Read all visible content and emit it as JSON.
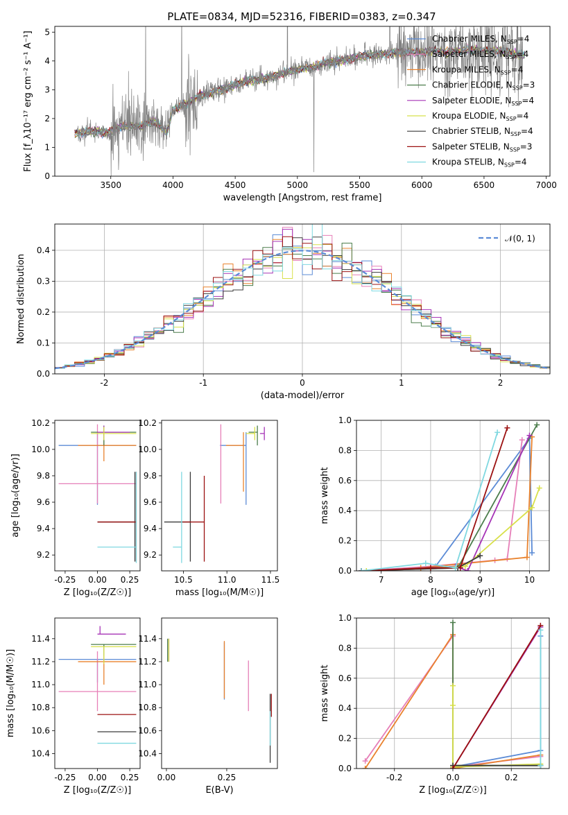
{
  "figure": {
    "title": "PLATE=0834, MJD=52316, FIBERID=0383, z=0.347"
  },
  "model_styles": [
    {
      "name": "Chabrier MILES",
      "nssp": "4",
      "color": "#5b8bd6"
    },
    {
      "name": "Salpeter MILES",
      "nssp": "4",
      "color": "#e67fb8"
    },
    {
      "name": "Kroupa MILES",
      "nssp": "4",
      "color": "#e9822d"
    },
    {
      "name": "Chabrier ELODIE",
      "nssp": "3",
      "color": "#4b7d4b"
    },
    {
      "name": "Salpeter ELODIE",
      "nssp": "4",
      "color": "#a633b6"
    },
    {
      "name": "Kroupa ELODIE",
      "nssp": "4",
      "color": "#d8e04a"
    },
    {
      "name": "Chabrier STELIB",
      "nssp": "4",
      "color": "#3a3a3a"
    },
    {
      "name": "Salpeter STELIB",
      "nssp": "3",
      "color": "#9b1010"
    },
    {
      "name": "Kroupa STELIB",
      "nssp": "4",
      "color": "#7fd8e0"
    }
  ],
  "chart_data": [
    {
      "id": "spectrum",
      "type": "line",
      "xlabel": "wavelength [Angstrom, rest frame]",
      "ylabel": "Flux [f_λ10⁻¹⁷ erg cm⁻² s⁻¹ A⁻¹]",
      "xlim": [
        3050,
        7030
      ],
      "ylim": [
        0,
        5.2
      ],
      "xticks": [
        3500,
        4000,
        4500,
        5000,
        5500,
        6000,
        6500,
        7000
      ],
      "yticks": [
        0,
        1,
        2,
        3,
        4,
        5
      ],
      "grid": false,
      "legend_position": "right",
      "continuum": {
        "x": [
          3210,
          3300,
          3400,
          3480,
          3550,
          3650,
          3750,
          3850,
          3900,
          3950,
          4000,
          4100,
          4200,
          4300,
          4400,
          4500,
          4600,
          4700,
          4800,
          4900,
          5000,
          5100,
          5200,
          5300,
          5400,
          5500,
          5600,
          5700,
          5800,
          5900,
          6000,
          6100,
          6200,
          6300,
          6400,
          6500,
          6600,
          6700,
          6800
        ],
        "y": [
          1.45,
          1.55,
          1.55,
          1.5,
          1.7,
          1.75,
          1.75,
          1.9,
          1.7,
          1.5,
          2.3,
          2.5,
          2.75,
          2.9,
          3.0,
          3.2,
          3.3,
          3.35,
          3.45,
          3.6,
          3.7,
          3.75,
          3.9,
          4.0,
          4.05,
          4.15,
          4.2,
          4.25,
          4.3,
          4.3,
          4.3,
          4.35,
          4.3,
          4.35,
          4.4,
          4.35,
          4.35,
          4.3,
          4.2
        ]
      },
      "observed_x_range": [
        3230,
        6810
      ],
      "observed_noise_note": "",
      "model_x_range": [
        3210,
        6830
      ]
    },
    {
      "id": "residuals",
      "type": "histogram",
      "xlabel": "(data-model)/error",
      "ylabel": "Normed distribution",
      "xlim": [
        -2.5,
        2.5
      ],
      "ylim": [
        0,
        0.485
      ],
      "xticks": [
        -2,
        -1,
        0,
        1,
        2
      ],
      "yticks": [
        0,
        0.1,
        0.2,
        0.3,
        0.4
      ],
      "grid": true,
      "bin_width": 0.1,
      "reference_curve": {
        "label": "𝒩(0, 1)",
        "color": "#5b8bd6",
        "style": "dashed"
      },
      "legend_position": "top-right"
    },
    {
      "id": "age_vs_Z",
      "type": "errorbar",
      "xlabel": "Z [log₁₀(Z/Z☉)]",
      "ylabel": "age  [log₁₀(age/yr)]",
      "xlim": [
        -0.33,
        0.33
      ],
      "ylim": [
        9.08,
        10.22
      ],
      "xticks": [
        -0.25,
        0.0,
        0.25
      ],
      "yticks": [
        9.2,
        9.4,
        9.6,
        9.8,
        10.0,
        10.2
      ],
      "points": [
        {
          "model": 0,
          "x": 0.0,
          "y": 10.03,
          "xerr": [
            0.3,
            0.3
          ],
          "yerr": [
            0.45,
            0.1
          ]
        },
        {
          "model": 1,
          "x": 0.0,
          "y": 9.74,
          "xerr": [
            0.3,
            0.3
          ],
          "yerr": [
            0.15,
            0.45
          ]
        },
        {
          "model": 2,
          "x": 0.05,
          "y": 10.03,
          "xerr": [
            0.2,
            0.25
          ],
          "yerr": [
            0.12,
            0.1
          ]
        },
        {
          "model": 3,
          "x": 0.05,
          "y": 10.13,
          "xerr": [
            0.1,
            0.25
          ],
          "yerr": [
            0.1,
            0.05
          ]
        },
        {
          "model": 4,
          "x": 0.05,
          "y": 10.13,
          "xerr": [
            0.05,
            0.2
          ],
          "yerr": [
            0.05,
            0.05
          ]
        },
        {
          "model": 5,
          "x": 0.05,
          "y": 10.12,
          "xerr": [
            0.1,
            0.25
          ],
          "yerr": [
            0.05,
            0.05
          ]
        },
        {
          "model": 6,
          "x": 0.29,
          "y": 9.45,
          "xerr": [
            0.29,
            0.01
          ],
          "yerr": [
            0.3,
            0.38
          ]
        },
        {
          "model": 7,
          "x": 0.3,
          "y": 9.45,
          "xerr": [
            0.3,
            0.0
          ],
          "yerr": [
            0.3,
            0.38
          ]
        },
        {
          "model": 8,
          "x": 0.3,
          "y": 9.26,
          "xerr": [
            0.3,
            0.0
          ],
          "yerr": [
            0.12,
            0.57
          ]
        }
      ]
    },
    {
      "id": "age_vs_mass",
      "type": "errorbar",
      "xlabel": "mass [log₁₀(M/M☉)]",
      "ylabel": "",
      "xlim": [
        10.25,
        11.58
      ],
      "ylim": [
        9.08,
        10.22
      ],
      "xticks": [
        10.5,
        11.0,
        11.5
      ],
      "yticks": [
        9.2,
        9.4,
        9.6,
        9.8,
        10.0,
        10.2
      ],
      "points": [
        {
          "model": 0,
          "x": 11.22,
          "y": 10.03,
          "xerr": [
            0.3,
            0.0
          ],
          "yerr": [
            0.45,
            0.1
          ]
        },
        {
          "model": 1,
          "x": 10.93,
          "y": 9.74,
          "xerr": [
            0.0,
            0.0
          ],
          "yerr": [
            0.15,
            0.45
          ]
        },
        {
          "model": 2,
          "x": 11.19,
          "y": 10.03,
          "xerr": [
            0.2,
            0.0
          ],
          "yerr": [
            0.35,
            0.1
          ]
        },
        {
          "model": 3,
          "x": 11.35,
          "y": 10.13,
          "xerr": [
            0.1,
            0.0
          ],
          "yerr": [
            0.1,
            0.05
          ]
        },
        {
          "model": 4,
          "x": 11.43,
          "y": 10.12,
          "xerr": [
            0.05,
            0.0
          ],
          "yerr": [
            0.05,
            0.05
          ]
        },
        {
          "model": 5,
          "x": 11.32,
          "y": 10.12,
          "xerr": [
            0.1,
            0.0
          ],
          "yerr": [
            0.05,
            0.05
          ]
        },
        {
          "model": 6,
          "x": 10.58,
          "y": 9.45,
          "xerr": [
            0.3,
            0.0
          ],
          "yerr": [
            0.3,
            0.38
          ]
        },
        {
          "model": 7,
          "x": 10.74,
          "y": 9.45,
          "xerr": [
            0.25,
            0.0
          ],
          "yerr": [
            0.3,
            0.35
          ]
        },
        {
          "model": 8,
          "x": 10.48,
          "y": 9.26,
          "xerr": [
            0.1,
            0.0
          ],
          "yerr": [
            0.12,
            0.57
          ]
        }
      ]
    },
    {
      "id": "weight_vs_age",
      "type": "line",
      "xlabel": "age  [log₁₀(age/yr)]",
      "ylabel": "mass weight",
      "xlim": [
        6.5,
        10.4
      ],
      "ylim": [
        0,
        1.0
      ],
      "xticks": [
        7,
        8,
        9,
        10
      ],
      "yticks": [
        0.0,
        0.2,
        0.4,
        0.6,
        0.8,
        1.0
      ],
      "grid": true,
      "series": [
        {
          "model": 0,
          "x": [
            6.6,
            8.1,
            10.0,
            10.05
          ],
          "y": [
            0.0,
            0.03,
            0.88,
            0.12
          ]
        },
        {
          "model": 1,
          "x": [
            6.6,
            8.0,
            9.3,
            9.55,
            9.85
          ],
          "y": [
            0.0,
            0.03,
            0.07,
            0.08,
            0.87
          ]
        },
        {
          "model": 2,
          "x": [
            6.7,
            7.8,
            9.95,
            10.05
          ],
          "y": [
            0.0,
            0.02,
            0.09,
            0.89
          ]
        },
        {
          "model": 3,
          "x": [
            6.6,
            8.55,
            10.15
          ],
          "y": [
            0.0,
            0.02,
            0.97
          ]
        },
        {
          "model": 4,
          "x": [
            6.6,
            8.5,
            8.75,
            10.0
          ],
          "y": [
            0.0,
            0.03,
            0.0,
            0.9
          ]
        },
        {
          "model": 5,
          "x": [
            6.7,
            8.7,
            10.05,
            10.2
          ],
          "y": [
            0.0,
            0.03,
            0.42,
            0.55
          ]
        },
        {
          "model": 6,
          "x": [
            6.6,
            8.55,
            9.0
          ],
          "y": [
            0.0,
            0.02,
            0.1
          ]
        },
        {
          "model": 7,
          "x": [
            6.6,
            8.0,
            8.6,
            9.55
          ],
          "y": [
            0.0,
            0.02,
            0.02,
            0.95
          ]
        },
        {
          "model": 8,
          "x": [
            6.6,
            7.9,
            8.5,
            9.35
          ],
          "y": [
            0.0,
            0.05,
            0.02,
            0.92
          ]
        }
      ]
    },
    {
      "id": "mass_vs_Z",
      "type": "errorbar",
      "xlabel": "Z [log₁₀(Z/Z☉)]",
      "ylabel": "mass [log₁₀(M/M☉)]",
      "xlim": [
        -0.33,
        0.33
      ],
      "ylim": [
        10.27,
        11.58
      ],
      "xticks": [
        -0.25,
        0.0,
        0.25
      ],
      "yticks": [
        10.4,
        10.6,
        10.8,
        11.0,
        11.2,
        11.4
      ],
      "points": [
        {
          "model": 0,
          "x": 0.0,
          "y": 11.22,
          "xerr": [
            0.3,
            0.3
          ],
          "yerr": [
            0.2,
            0.0
          ]
        },
        {
          "model": 1,
          "x": 0.0,
          "y": 10.94,
          "xerr": [
            0.3,
            0.3
          ],
          "yerr": [
            0.17,
            0.35
          ]
        },
        {
          "model": 2,
          "x": 0.05,
          "y": 11.2,
          "xerr": [
            0.2,
            0.25
          ],
          "yerr": [
            0.2,
            0.05
          ]
        },
        {
          "model": 3,
          "x": 0.05,
          "y": 11.35,
          "xerr": [
            0.1,
            0.25
          ],
          "yerr": [
            0.1,
            0.0
          ]
        },
        {
          "model": 4,
          "x": 0.02,
          "y": 11.44,
          "xerr": [
            0.02,
            0.2
          ],
          "yerr": [
            0.0,
            0.07
          ]
        },
        {
          "model": 5,
          "x": 0.05,
          "y": 11.33,
          "xerr": [
            0.1,
            0.25
          ],
          "yerr": [
            0.15,
            0.0
          ]
        },
        {
          "model": 6,
          "x": 0.0,
          "y": 10.59,
          "xerr": [
            0.0,
            0.3
          ],
          "yerr": [
            0.0,
            0.0
          ]
        },
        {
          "model": 7,
          "x": 0.0,
          "y": 10.74,
          "xerr": [
            0.0,
            0.3
          ],
          "yerr": [
            0.0,
            0.0
          ]
        },
        {
          "model": 8,
          "x": 0.0,
          "y": 10.49,
          "xerr": [
            0.0,
            0.3
          ],
          "yerr": [
            0.0,
            0.0
          ]
        }
      ]
    },
    {
      "id": "mass_vs_EBV",
      "type": "errorbar",
      "xlabel": "E(B-V)",
      "ylabel": "",
      "xlim": [
        -0.02,
        0.46
      ],
      "ylim": [
        10.27,
        11.58
      ],
      "xticks": [
        0.0,
        0.25
      ],
      "xticklabels": [
        "0.00",
        "0.25"
      ],
      "yticks": [
        10.4,
        10.6,
        10.8,
        11.0,
        11.2,
        11.4
      ],
      "points": [
        {
          "model": 0,
          "x": 0.24,
          "y": 11.12,
          "xerr": [
            0,
            0
          ],
          "yerr": [
            0.25,
            0.25
          ]
        },
        {
          "model": 1,
          "x": 0.34,
          "y": 10.99,
          "xerr": [
            0,
            0
          ],
          "yerr": [
            0.22,
            0.22
          ]
        },
        {
          "model": 2,
          "x": 0.24,
          "y": 11.13,
          "xerr": [
            0,
            0
          ],
          "yerr": [
            0.25,
            0.25
          ]
        },
        {
          "model": 3,
          "x": 0.005,
          "y": 11.3,
          "xerr": [
            0,
            0
          ],
          "yerr": [
            0.1,
            0.1
          ]
        },
        {
          "model": 4,
          "x": 0.01,
          "y": 11.3,
          "xerr": [
            0,
            0
          ],
          "yerr": [
            0.1,
            0.1
          ]
        },
        {
          "model": 5,
          "x": 0.01,
          "y": 11.3,
          "xerr": [
            0,
            0
          ],
          "yerr": [
            0.1,
            0.1
          ]
        },
        {
          "model": 6,
          "x": 0.43,
          "y": 10.62,
          "xerr": [
            0,
            0
          ],
          "yerr": [
            0.3,
            0.3
          ]
        },
        {
          "model": 7,
          "x": 0.435,
          "y": 10.82,
          "xerr": [
            0,
            0
          ],
          "yerr": [
            0.1,
            0.1
          ]
        },
        {
          "model": 8,
          "x": 0.43,
          "y": 10.62,
          "xerr": [
            0,
            0
          ],
          "yerr": [
            0.15,
            0.15
          ]
        }
      ]
    },
    {
      "id": "weight_vs_Z",
      "type": "line",
      "xlabel": "Z [log₁₀(Z/Z☉)]",
      "ylabel": "mass weight",
      "xlim": [
        -0.33,
        0.33
      ],
      "ylim": [
        0,
        1.0
      ],
      "xticks": [
        -0.2,
        0.0,
        0.2
      ],
      "yticks": [
        0.0,
        0.2,
        0.4,
        0.6,
        0.8,
        1.0
      ],
      "grid": true,
      "series": [
        {
          "model": 0,
          "x": [
            0.0,
            0.3,
            0.3
          ],
          "y": [
            0.01,
            0.12,
            0.88
          ]
        },
        {
          "model": 1,
          "x": [
            -0.3,
            0.0,
            0.0,
            0.3
          ],
          "y": [
            0.05,
            0.88,
            0.01,
            0.08
          ]
        },
        {
          "model": 2,
          "x": [
            -0.3,
            0.0,
            0.0,
            0.3
          ],
          "y": [
            0.0,
            0.89,
            0.0,
            0.09
          ]
        },
        {
          "model": 3,
          "x": [
            0.0,
            0.0,
            0.3
          ],
          "y": [
            0.97,
            0.02,
            0.02
          ]
        },
        {
          "model": 4,
          "x": [
            0.0,
            0.3
          ],
          "y": [
            0.0,
            0.94
          ]
        },
        {
          "model": 5,
          "x": [
            0.0,
            0.0,
            0.0,
            0.3
          ],
          "y": [
            0.55,
            0.42,
            0.01,
            0.03
          ]
        },
        {
          "model": 6,
          "x": [
            0.0,
            0.3
          ],
          "y": [
            0.02,
            0.02
          ]
        },
        {
          "model": 7,
          "x": [
            0.0,
            0.3
          ],
          "y": [
            0.0,
            0.95
          ]
        },
        {
          "model": 8,
          "x": [
            0.3,
            0.3
          ],
          "y": [
            0.02,
            0.92
          ]
        }
      ]
    }
  ]
}
